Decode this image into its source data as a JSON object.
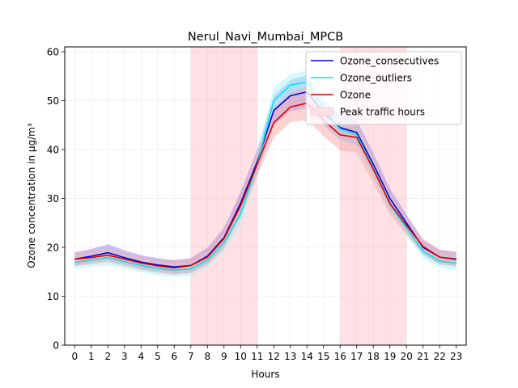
{
  "chart_data": {
    "type": "line",
    "title": "Nerul_Navi_Mumbai_MPCB",
    "xlabel": "Hours",
    "ylabel": "Ozone concentration in µg/m³",
    "x": [
      0,
      1,
      2,
      3,
      4,
      5,
      6,
      7,
      8,
      9,
      10,
      11,
      12,
      13,
      14,
      15,
      16,
      17,
      18,
      19,
      20,
      21,
      22,
      23
    ],
    "xlim": [
      -0.6,
      23.6
    ],
    "ylim": [
      0,
      61
    ],
    "yticks": [
      0,
      10,
      20,
      30,
      40,
      50,
      60
    ],
    "grid": true,
    "legend_position": "top-right",
    "shaded_regions": [
      {
        "x0": 7,
        "x1": 11
      },
      {
        "x0": 16,
        "x1": 20
      }
    ],
    "series": [
      {
        "name": "Ozone_consecutives",
        "color": "#0000dd",
        "band_color": "#8a8aff",
        "values": [
          17.6,
          18.2,
          18.9,
          17.9,
          17.0,
          16.4,
          16.0,
          16.3,
          18.2,
          22.0,
          29.0,
          37.5,
          48.0,
          51.0,
          51.8,
          47.5,
          44.5,
          43.5,
          37.0,
          30.0,
          25.0,
          20.0,
          18.0,
          17.6
        ],
        "lower": [
          16.3,
          16.8,
          17.3,
          16.5,
          15.6,
          15.0,
          14.6,
          14.8,
          16.6,
          20.0,
          26.8,
          35.0,
          45.0,
          47.8,
          48.5,
          45.0,
          42.0,
          41.0,
          34.8,
          28.0,
          23.3,
          18.5,
          16.5,
          16.2
        ],
        "upper": [
          19.0,
          19.7,
          20.6,
          19.4,
          18.4,
          17.8,
          17.4,
          17.8,
          19.9,
          24.0,
          31.3,
          40.0,
          51.0,
          54.2,
          55.2,
          50.0,
          47.0,
          46.0,
          39.3,
          32.0,
          26.7,
          21.5,
          19.5,
          19.1
        ]
      },
      {
        "name": "Ozone_outliers",
        "color": "#00e5e5",
        "band_color": "#a8f4f8",
        "values": [
          16.9,
          17.4,
          17.9,
          17.1,
          16.3,
          15.7,
          15.3,
          15.6,
          17.4,
          21.0,
          26.8,
          37.0,
          50.0,
          53.2,
          53.8,
          48.5,
          44.2,
          43.0,
          36.2,
          28.8,
          24.0,
          19.2,
          17.2,
          16.8
        ],
        "lower": [
          15.6,
          16.0,
          16.4,
          15.7,
          14.9,
          14.3,
          14.0,
          14.2,
          15.9,
          19.2,
          24.5,
          34.6,
          47.4,
          50.6,
          51.2,
          46.2,
          41.8,
          40.6,
          34.2,
          27.0,
          22.4,
          17.8,
          15.8,
          15.4
        ],
        "upper": [
          18.3,
          18.8,
          19.5,
          18.6,
          17.8,
          17.2,
          16.7,
          17.1,
          19.0,
          23.0,
          29.3,
          39.6,
          52.6,
          55.4,
          56.2,
          51.0,
          46.6,
          45.4,
          38.4,
          30.7,
          25.7,
          20.6,
          18.7,
          18.3
        ]
      },
      {
        "name": "Ozone",
        "color": "#dd0000",
        "band_color": "#f7a8a8",
        "values": [
          17.6,
          17.9,
          18.4,
          17.6,
          16.8,
          16.2,
          15.8,
          16.3,
          18.0,
          21.8,
          28.5,
          37.0,
          45.5,
          48.7,
          49.5,
          46.0,
          43.0,
          42.5,
          36.0,
          29.0,
          24.5,
          20.2,
          18.0,
          17.5
        ],
        "lower": [
          16.2,
          16.5,
          17.0,
          16.2,
          15.4,
          14.8,
          14.4,
          14.8,
          16.4,
          19.8,
          26.2,
          34.6,
          42.4,
          45.6,
          46.0,
          42.8,
          39.8,
          39.4,
          33.2,
          26.8,
          22.6,
          18.7,
          16.6,
          16.1
        ],
        "upper": [
          19.0,
          19.4,
          19.9,
          19.0,
          18.2,
          17.6,
          17.3,
          17.8,
          19.6,
          23.8,
          30.8,
          39.4,
          48.6,
          51.6,
          52.8,
          49.0,
          46.0,
          45.6,
          38.8,
          31.2,
          26.4,
          21.8,
          19.5,
          19.0
        ]
      }
    ],
    "legend": [
      {
        "label": "Ozone_consecutives",
        "kind": "line",
        "color": "#0000dd"
      },
      {
        "label": "Ozone_outliers",
        "kind": "line",
        "color": "#00e5e5"
      },
      {
        "label": "Ozone",
        "kind": "line",
        "color": "#dd0000"
      },
      {
        "label": "Peak traffic hours",
        "kind": "patch",
        "color": "#ffe0e4"
      }
    ]
  }
}
